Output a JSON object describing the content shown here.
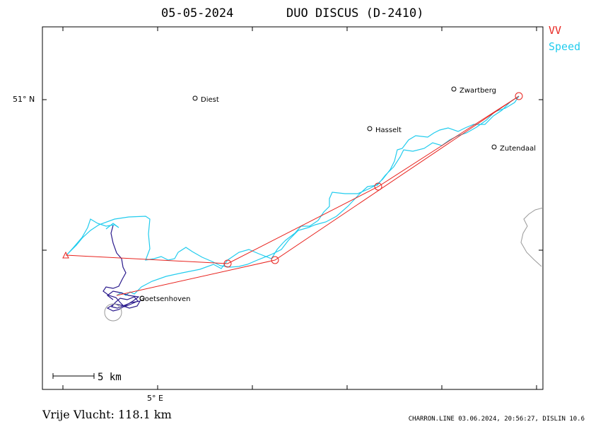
{
  "header": {
    "date": "05-05-2024",
    "glider": "DUO DISCUS (D-2410)"
  },
  "legend": [
    {
      "label": "VV",
      "color": "#e8231e"
    },
    {
      "label": "Speed",
      "color": "#22ccee"
    }
  ],
  "axes": {
    "lat_label": "51° N",
    "lon_label": "5° E"
  },
  "places": [
    {
      "name": "Diest"
    },
    {
      "name": "Zwartberg"
    },
    {
      "name": "Hasselt"
    },
    {
      "name": "Zutendaal"
    },
    {
      "name": "Goetsenhoven"
    }
  ],
  "scale_bar": {
    "label": "5  km"
  },
  "footer": {
    "distance": "Vrije Vlucht:  118.1 km",
    "credit": "CHARRON.LINE 03.06.2024, 20:56:27, DISLIN 10.6"
  },
  "colors": {
    "task_line": "#e8231e",
    "track_speed": "#22ccee",
    "track_climb": "#2a1a8c",
    "frame": "#000000",
    "coast": "#999999"
  }
}
